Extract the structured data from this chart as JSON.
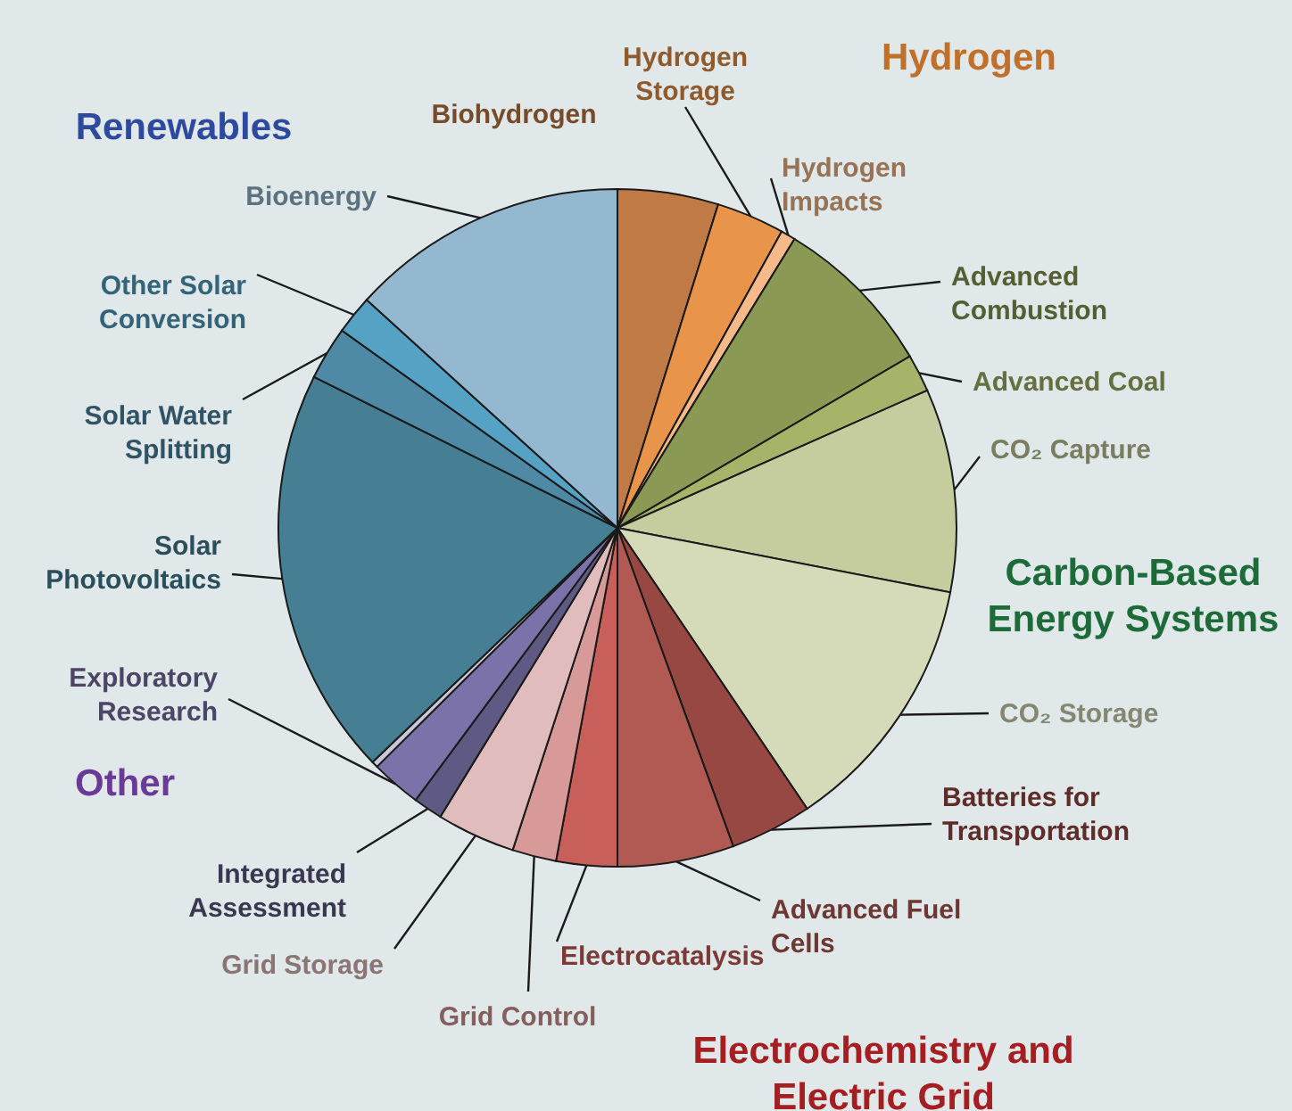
{
  "chart_data": {
    "type": "pie",
    "categories": [
      "Biohydrogen",
      "Hydrogen Storage",
      "Hydrogen Impacts",
      "Advanced Combustion",
      "Advanced Coal",
      "CO₂ Capture",
      "CO₂ Storage",
      "Batteries for Transportation",
      "Advanced Fuel Cells",
      "Electrocatalysis",
      "Grid Control",
      "Grid Storage",
      "Integrated Assessment",
      "Exploratory Research",
      null,
      "Solar Photovoltaics",
      "Solar Water Splitting",
      "Other Solar Conversion",
      "Bioenergy"
    ],
    "values": [
      4.8,
      3.25,
      0.7,
      7.8,
      1.8,
      9.7,
      12.5,
      3.9,
      5.55,
      2.9,
      2.1,
      3.75,
      1.4,
      2.4,
      0.3,
      19.5,
      2.55,
      1.85,
      13.25
    ],
    "colors": [
      "#c07a45",
      "#e8944a",
      "#f5b98a",
      "#8a9a55",
      "#a6b469",
      "#c5cc9e",
      "#d5dbb8",
      "#984843",
      "#b05a53",
      "#c95f5a",
      "#d89a98",
      "#e0bcbc",
      "#5e5a84",
      "#7a72a8",
      "#c8c8d8",
      "#467f93",
      "#4e89a5",
      "#55a2c4",
      "#93b8d0"
    ],
    "annotations": [
      "Renewables",
      "Hydrogen",
      "Carbon-Based Energy Systems",
      "Other",
      "Electrochemistry and Electric Grid"
    ]
  }
}
